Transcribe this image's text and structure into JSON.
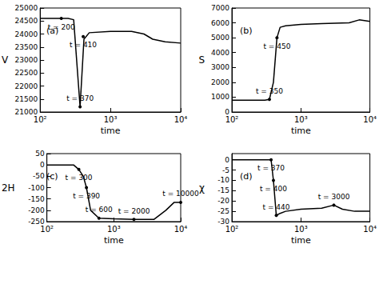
{
  "chart_data": [
    {
      "type": "line",
      "panel": "(a)",
      "x_label": "time",
      "y_label": "V",
      "log": "x",
      "grid": false,
      "color": "#000000",
      "xlim": [
        100,
        10000
      ],
      "xticks": [
        {
          "value": 100,
          "label": "10²"
        },
        {
          "value": 1000,
          "label": "10³"
        },
        {
          "value": 10000,
          "label": "10⁴"
        }
      ],
      "ylim": [
        21000,
        25000
      ],
      "yticks": [
        21000,
        21500,
        22000,
        22500,
        23000,
        23500,
        24000,
        24500,
        25000
      ],
      "x": [
        100,
        250,
        300,
        370,
        420,
        500,
        1000,
        2000,
        3000,
        4000,
        6000,
        10000
      ],
      "values": [
        24600,
        24600,
        24550,
        21200,
        23800,
        24050,
        24100,
        24100,
        24000,
        23800,
        23700,
        23650
      ],
      "annotations": [
        {
          "text": "t = 200",
          "x": 200,
          "y": 24600
        },
        {
          "text": "t = 410",
          "x": 410,
          "y": 23900
        },
        {
          "text": "t = 370",
          "x": 370,
          "y": 21200
        }
      ]
    },
    {
      "type": "line",
      "panel": "(b)",
      "x_label": "time",
      "y_label": "S",
      "log": "x",
      "grid": false,
      "color": "#000000",
      "xlim": [
        100,
        10000
      ],
      "xticks": [
        {
          "value": 100,
          "label": "10²"
        },
        {
          "value": 1000,
          "label": "10³"
        },
        {
          "value": 10000,
          "label": "10⁴"
        }
      ],
      "ylim": [
        0,
        7000
      ],
      "yticks": [
        0,
        1000,
        2000,
        3000,
        4000,
        5000,
        6000,
        7000
      ],
      "x": [
        100,
        300,
        350,
        400,
        450,
        500,
        600,
        1000,
        2000,
        5000,
        7000,
        10000
      ],
      "values": [
        800,
        800,
        850,
        2000,
        5000,
        5700,
        5800,
        5900,
        5950,
        6000,
        6200,
        6100
      ],
      "annotations": [
        {
          "text": "t = 450",
          "x": 450,
          "y": 5000
        },
        {
          "text": "t = 350",
          "x": 350,
          "y": 850
        }
      ]
    },
    {
      "type": "line",
      "panel": "(c)",
      "x_label": "time",
      "y_label": "2H",
      "log": "x",
      "grid": false,
      "color": "#000000",
      "xlim": [
        100,
        10000
      ],
      "xticks": [
        {
          "value": 100,
          "label": "10²"
        },
        {
          "value": 1000,
          "label": "10³"
        },
        {
          "value": 10000,
          "label": "10⁴"
        }
      ],
      "ylim": [
        -250,
        50
      ],
      "yticks": [
        -250,
        -200,
        -150,
        -100,
        -50,
        0,
        50
      ],
      "x": [
        100,
        250,
        300,
        350,
        390,
        450,
        600,
        1000,
        2000,
        4000,
        6000,
        8000,
        10000
      ],
      "values": [
        0,
        0,
        -20,
        -50,
        -100,
        -200,
        -235,
        -238,
        -240,
        -240,
        -200,
        -165,
        -165
      ],
      "annotations": [
        {
          "text": "t = 390",
          "x": 390,
          "y": -100
        },
        {
          "text": "t = 300",
          "x": 300,
          "y": -20
        },
        {
          "text": "t = 600",
          "x": 600,
          "y": -235
        },
        {
          "text": "t = 2000",
          "x": 2000,
          "y": -240
        },
        {
          "text": "t = 10000",
          "x": 10000,
          "y": -165
        }
      ]
    },
    {
      "type": "line",
      "panel": "(d)",
      "x_label": "time",
      "y_label": "χ",
      "log": "x",
      "grid": false,
      "color": "#000000",
      "xlim": [
        100,
        10000
      ],
      "xticks": [
        {
          "value": 100,
          "label": "10²"
        },
        {
          "value": 1000,
          "label": "10³"
        },
        {
          "value": 10000,
          "label": "10⁴"
        }
      ],
      "ylim": [
        -30,
        3
      ],
      "yticks": [
        -30,
        -25,
        -20,
        -15,
        -10,
        -5,
        0
      ],
      "x": [
        100,
        300,
        370,
        400,
        440,
        500,
        600,
        1000,
        2000,
        3000,
        4000,
        6000,
        10000
      ],
      "values": [
        0,
        0,
        0,
        -10,
        -27,
        -26,
        -25,
        -24,
        -23.5,
        -22,
        -24,
        -25,
        -25
      ],
      "annotations": [
        {
          "text": "t = 370",
          "x": 370,
          "y": 0
        },
        {
          "text": "t = 400",
          "x": 400,
          "y": -10
        },
        {
          "text": "t = 440",
          "x": 440,
          "y": -27
        },
        {
          "text": "t = 3000",
          "x": 3000,
          "y": -22
        }
      ]
    }
  ]
}
